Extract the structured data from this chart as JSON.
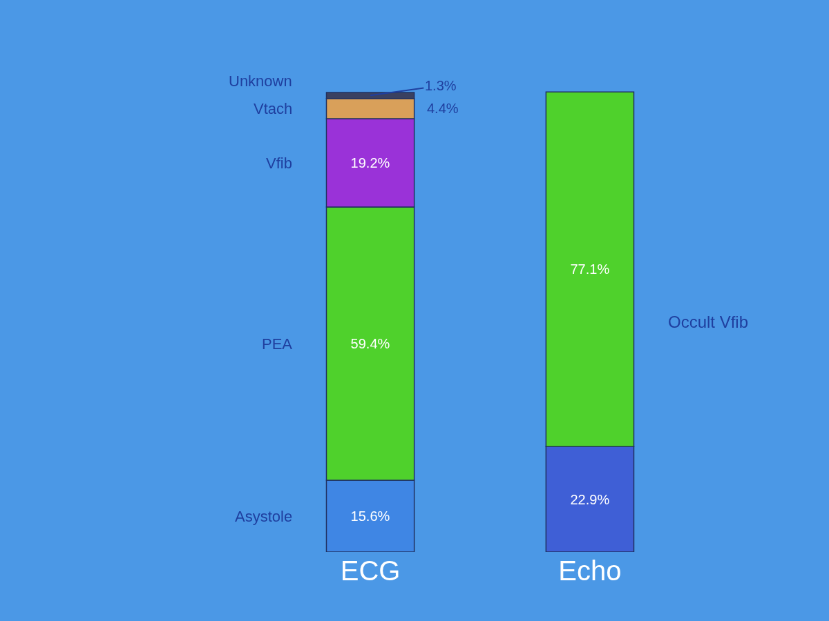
{
  "chart_data": {
    "type": "bar",
    "stacked": true,
    "categories": [
      "ECG",
      "Echo"
    ],
    "series": [
      {
        "name": "Asystole",
        "colors": [
          "#3f86e4",
          "#3f5fd6"
        ],
        "values": [
          15.6,
          22.9
        ],
        "value_labels": [
          "15.6%",
          "22.9%"
        ]
      },
      {
        "name": "PEA",
        "color": "#4fd12c",
        "values": [
          59.4,
          77.1
        ],
        "value_labels": [
          "59.4%",
          "77.1%"
        ]
      },
      {
        "name": "Vfib",
        "color": "#9a32d8",
        "values": [
          19.2,
          null
        ],
        "value_labels": [
          "19.2%",
          null
        ]
      },
      {
        "name": "Vtach",
        "color": "#d9a05a",
        "values": [
          4.4,
          null
        ],
        "value_labels": [
          "4.4%",
          null
        ]
      },
      {
        "name": "Unknown",
        "color": "#3a4060",
        "values": [
          1.3,
          null
        ],
        "value_labels": [
          "1.3%",
          null
        ]
      }
    ],
    "annotations": [
      "Occult Vfib"
    ],
    "tick_labels": "x",
    "grid": false,
    "legend": false
  }
}
